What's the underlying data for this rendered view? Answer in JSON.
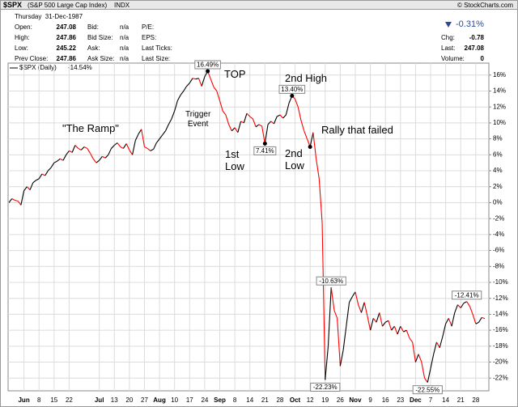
{
  "header": {
    "symbol": "$SPX",
    "name": "(S&P 500 Large Cap Index)",
    "exchange": "INDX",
    "copyright": "© StockCharts.com",
    "date": "Thursday  31-Dec-1987",
    "quote_left": [
      [
        "Open:",
        "247.08"
      ],
      [
        "High:",
        "247.86"
      ],
      [
        "Low:",
        "245.22"
      ],
      [
        "Prev Close:",
        "247.86"
      ]
    ],
    "quote_mid": [
      [
        "Bid:",
        "n/a"
      ],
      [
        "Bid Size:",
        "n/a"
      ],
      [
        "Ask:",
        "n/a"
      ],
      [
        "Ask Size:",
        "n/a"
      ]
    ],
    "quote_fundamentals": [
      "P/E:",
      "EPS:",
      "Last Ticks:",
      "Last Size:"
    ],
    "change_pct": "-0.31%",
    "quote_right": [
      [
        "Chg:",
        "-0.78"
      ],
      [
        "Last:",
        "247.08"
      ],
      [
        "Volume:",
        "0"
      ]
    ]
  },
  "chart_data": {
    "type": "line",
    "series": [
      {
        "name": "$SPX (Daily)",
        "last_label": "-14.54%",
        "color": "#000000",
        "down_color": "#ff0000",
        "values": [
          0,
          0.5,
          0.3,
          0.2,
          -0.3,
          1.5,
          2.0,
          1.6,
          2.5,
          2.8,
          3.0,
          3.6,
          3.4,
          4.0,
          4.4,
          5.0,
          5.2,
          5.5,
          5.3,
          6.0,
          6.5,
          6.3,
          7.2,
          6.8,
          6.6,
          7.0,
          6.8,
          6.2,
          5.5,
          5.0,
          5.3,
          5.8,
          5.6,
          6.0,
          6.8,
          7.2,
          7.5,
          7.0,
          6.8,
          7.4,
          6.6,
          6.0,
          7.8,
          8.6,
          9.2,
          7.0,
          6.8,
          6.5,
          6.7,
          7.5,
          8.0,
          8.5,
          9.0,
          9.8,
          10.5,
          11.5,
          12.8,
          13.5,
          14.0,
          14.6,
          15.0,
          15.6,
          15.5,
          15.6,
          14.6,
          15.8,
          16.49,
          15.5,
          14.5,
          14.0,
          12.8,
          11.5,
          11.0,
          9.8,
          9.0,
          9.4,
          8.8,
          10.2,
          10.0,
          11.2,
          10.8,
          10.5,
          9.5,
          9.8,
          9.6,
          7.41,
          9.8,
          10.2,
          9.9,
          10.8,
          11.0,
          10.6,
          11.0,
          12.5,
          13.4,
          13.0,
          12.0,
          10.3,
          9.0,
          8.0,
          7.0,
          8.8,
          5.5,
          3.0,
          -2.5,
          -22.23,
          -18,
          -10.63,
          -13.5,
          -14.5,
          -20.5,
          -18.5,
          -15.5,
          -12.5,
          -11.8,
          -11.2,
          -12.8,
          -13.8,
          -12.5,
          -14.2,
          -16.0,
          -14.5,
          -15.0,
          -13.8,
          -15.5,
          -15.0,
          -14.8,
          -16.0,
          -15.5,
          -16.5,
          -15.5,
          -16.2,
          -16.0,
          -17.0,
          -17.5,
          -20.0,
          -19.0,
          -20.0,
          -22.0,
          -22.55,
          -20.8,
          -19.0,
          -17.5,
          -18.2,
          -16.8,
          -15.2,
          -14.5,
          -15.5,
          -13.8,
          -12.8,
          -13.2,
          -12.6,
          -12.41,
          -13.0,
          -14.0,
          -15.2,
          -15.0,
          -14.4,
          -14.54
        ],
        "value_labels": [
          null,
          null,
          null,
          null,
          null,
          null,
          null,
          null,
          null,
          null,
          null,
          null,
          null,
          null,
          null,
          null,
          null,
          null,
          null,
          null,
          null,
          null,
          null,
          null,
          null,
          null,
          null,
          null,
          null,
          null,
          null,
          null,
          null,
          null,
          null,
          null,
          null,
          null,
          null,
          null,
          null,
          null,
          null,
          null,
          null,
          null,
          null,
          null,
          null,
          null,
          null,
          null,
          null,
          null,
          null,
          null,
          null,
          null,
          null,
          null,
          null,
          null,
          null,
          null,
          null,
          null,
          "16.49%",
          null,
          null,
          null,
          null,
          null,
          null,
          null,
          null,
          null,
          null,
          null,
          null,
          null,
          null,
          null,
          null,
          null,
          null,
          "7.41%",
          null,
          null,
          null,
          null,
          null,
          null,
          null,
          null,
          "13.40%",
          null,
          null,
          null,
          null,
          null,
          null,
          null,
          null,
          null,
          null,
          "-22.23%",
          null,
          "-10.63%",
          null,
          null,
          null,
          null,
          null,
          null,
          null,
          null,
          null,
          null,
          null,
          null,
          null,
          null,
          null,
          null,
          null,
          null,
          null,
          null,
          null,
          null,
          null,
          null,
          null,
          null,
          null,
          null,
          null,
          null,
          null,
          "-22.55%",
          null,
          null,
          null,
          null,
          null,
          null,
          null,
          null,
          null,
          null,
          null,
          null,
          "-12.41%",
          null,
          null,
          null,
          null,
          null,
          null
        ]
      }
    ],
    "categories": [
      null,
      null,
      null,
      null,
      null,
      "Jun",
      null,
      null,
      null,
      null,
      "8",
      null,
      null,
      null,
      null,
      "15",
      null,
      null,
      null,
      null,
      "22",
      null,
      null,
      null,
      null,
      null,
      null,
      null,
      null,
      null,
      "Jul",
      null,
      null,
      null,
      null,
      "13",
      null,
      null,
      null,
      null,
      "20",
      null,
      null,
      null,
      null,
      "27",
      null,
      null,
      null,
      null,
      "Aug",
      null,
      null,
      null,
      null,
      "10",
      null,
      null,
      null,
      null,
      "17",
      null,
      null,
      null,
      null,
      "24",
      null,
      null,
      null,
      null,
      "Sep",
      null,
      null,
      null,
      null,
      "8",
      null,
      null,
      null,
      null,
      "14",
      null,
      null,
      null,
      null,
      "21",
      null,
      null,
      null,
      null,
      "28",
      null,
      null,
      null,
      null,
      "Oct",
      null,
      null,
      null,
      null,
      "12",
      null,
      null,
      null,
      null,
      "19",
      null,
      null,
      null,
      null,
      "26",
      null,
      null,
      null,
      null,
      "Nov",
      null,
      null,
      null,
      null,
      "9",
      null,
      null,
      null,
      null,
      "16",
      null,
      null,
      null,
      null,
      "23",
      null,
      null,
      null,
      null,
      "Dec",
      null,
      null,
      null,
      null,
      "7",
      null,
      null,
      null,
      null,
      "14",
      null,
      null,
      null,
      null,
      "21",
      null,
      null,
      null,
      null,
      "28",
      null,
      null,
      null
    ],
    "ylim": [
      -23.6,
      17.5
    ],
    "yticks": [
      {
        "value": 16,
        "label": "16%"
      },
      {
        "value": 14,
        "label": "14%"
      },
      {
        "value": 12,
        "label": "12%"
      },
      {
        "value": 10,
        "label": "10%"
      },
      {
        "value": 8,
        "label": "8%"
      },
      {
        "value": 6,
        "label": "6%"
      },
      {
        "value": 4,
        "label": "4%"
      },
      {
        "value": 2,
        "label": "2%"
      },
      {
        "value": 0,
        "label": "0%"
      },
      {
        "value": -2,
        "label": "-2%"
      },
      {
        "value": -4,
        "label": "-4%"
      },
      {
        "value": -6,
        "label": "-6%"
      },
      {
        "value": -8,
        "label": "-8%"
      },
      {
        "value": -10,
        "label": "-10%"
      },
      {
        "value": -12,
        "label": "-12%"
      },
      {
        "value": -14,
        "label": "-14%"
      },
      {
        "value": -16,
        "label": "-16%"
      },
      {
        "value": -18,
        "label": "-18%"
      },
      {
        "value": -20,
        "label": "-20%"
      },
      {
        "value": -22,
        "label": "-22%"
      }
    ],
    "grid": true,
    "annotations": [
      "TOP",
      "2nd High",
      "\"The Ramp\"",
      "Trigger\nEvent",
      "1st\nLow",
      "2nd\nLow",
      "Rally that failed"
    ]
  }
}
